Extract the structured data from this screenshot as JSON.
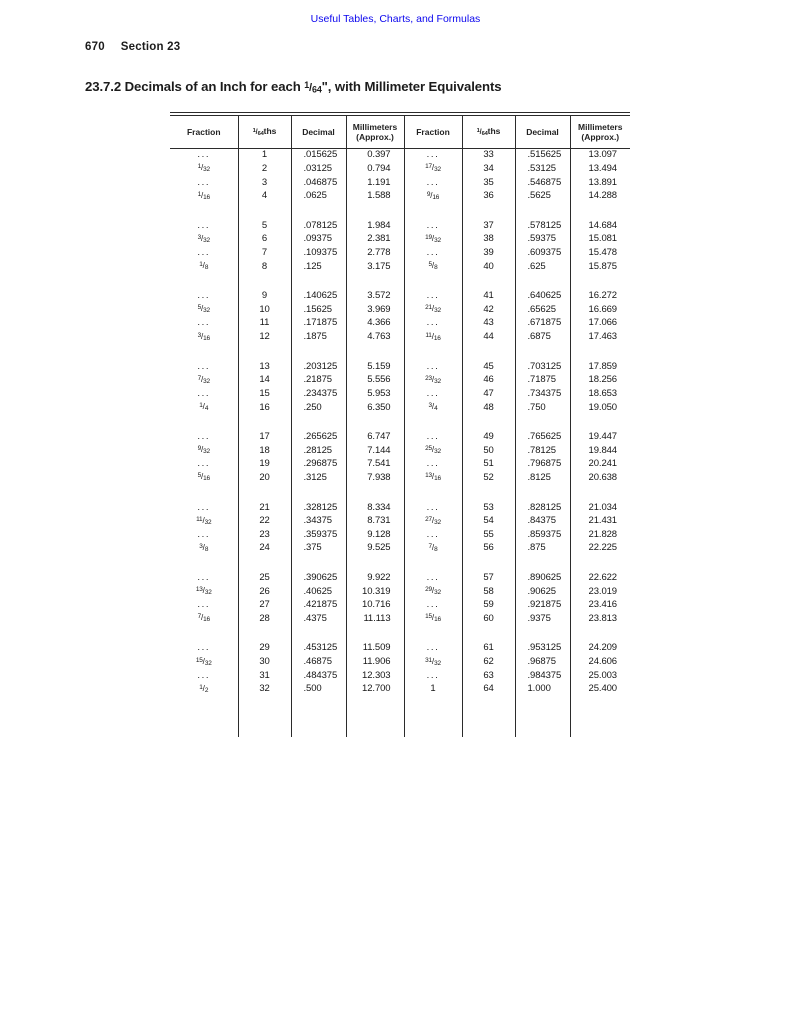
{
  "colors": {
    "link_blue": "#0b06ee",
    "rule_gray": "#2b2b2b"
  },
  "page": {
    "top_link": "Useful Tables, Charts, and Formulas",
    "page_number": "670",
    "section_label": "Section 23",
    "heading_prefix": "23.7.2 Decimals of an Inch for each ",
    "heading_fraction": "1/64",
    "heading_suffix": "\", with Millimeter Equivalents"
  },
  "table": {
    "col_headers": {
      "fraction": "Fraction",
      "sixtyfourths_frac": "1/64",
      "sixtyfourths_suffix": "ths",
      "decimal": "Decimal",
      "millimeters_line1": "Millimeters",
      "millimeters_line2": "(Approx.)"
    },
    "groups": [
      {
        "left": [
          [
            "...",
            "1",
            ".015625",
            "0.397"
          ],
          [
            "1/32",
            "2",
            ".03125",
            "0.794"
          ],
          [
            "...",
            "3",
            ".046875",
            "1.191"
          ],
          [
            "1/16",
            "4",
            ".0625",
            "1.588"
          ]
        ],
        "right": [
          [
            "...",
            "33",
            ".515625",
            "13.097"
          ],
          [
            "17/32",
            "34",
            ".53125",
            "13.494"
          ],
          [
            "...",
            "35",
            ".546875",
            "13.891"
          ],
          [
            "9/16",
            "36",
            ".5625",
            "14.288"
          ]
        ]
      },
      {
        "left": [
          [
            "...",
            "5",
            ".078125",
            "1.984"
          ],
          [
            "3/32",
            "6",
            ".09375",
            "2.381"
          ],
          [
            "...",
            "7",
            ".109375",
            "2.778"
          ],
          [
            "1/8",
            "8",
            ".125",
            "3.175"
          ]
        ],
        "right": [
          [
            "...",
            "37",
            ".578125",
            "14.684"
          ],
          [
            "19/32",
            "38",
            ".59375",
            "15.081"
          ],
          [
            "...",
            "39",
            ".609375",
            "15.478"
          ],
          [
            "5/8",
            "40",
            ".625",
            "15.875"
          ]
        ]
      },
      {
        "left": [
          [
            "...",
            "9",
            ".140625",
            "3.572"
          ],
          [
            "5/32",
            "10",
            ".15625",
            "3.969"
          ],
          [
            "...",
            "11",
            ".171875",
            "4.366"
          ],
          [
            "3/16",
            "12",
            ".1875",
            "4.763"
          ]
        ],
        "right": [
          [
            "...",
            "41",
            ".640625",
            "16.272"
          ],
          [
            "21/32",
            "42",
            ".65625",
            "16.669"
          ],
          [
            "...",
            "43",
            ".671875",
            "17.066"
          ],
          [
            "11/16",
            "44",
            ".6875",
            "17.463"
          ]
        ]
      },
      {
        "left": [
          [
            "...",
            "13",
            ".203125",
            "5.159"
          ],
          [
            "7/32",
            "14",
            ".21875",
            "5.556"
          ],
          [
            "...",
            "15",
            ".234375",
            "5.953"
          ],
          [
            "1/4",
            "16",
            ".250",
            "6.350"
          ]
        ],
        "right": [
          [
            "...",
            "45",
            ".703125",
            "17.859"
          ],
          [
            "23/32",
            "46",
            ".71875",
            "18.256"
          ],
          [
            "...",
            "47",
            ".734375",
            "18.653"
          ],
          [
            "3/4",
            "48",
            ".750",
            "19.050"
          ]
        ]
      },
      {
        "left": [
          [
            "...",
            "17",
            ".265625",
            "6.747"
          ],
          [
            "9/32",
            "18",
            ".28125",
            "7.144"
          ],
          [
            "...",
            "19",
            ".296875",
            "7.541"
          ],
          [
            "5/16",
            "20",
            ".3125",
            "7.938"
          ]
        ],
        "right": [
          [
            "...",
            "49",
            ".765625",
            "19.447"
          ],
          [
            "25/32",
            "50",
            ".78125",
            "19.844"
          ],
          [
            "...",
            "51",
            ".796875",
            "20.241"
          ],
          [
            "13/16",
            "52",
            ".8125",
            "20.638"
          ]
        ]
      },
      {
        "left": [
          [
            "...",
            "21",
            ".328125",
            "8.334"
          ],
          [
            "11/32",
            "22",
            ".34375",
            "8.731"
          ],
          [
            "...",
            "23",
            ".359375",
            "9.128"
          ],
          [
            "3/8",
            "24",
            ".375",
            "9.525"
          ]
        ],
        "right": [
          [
            "...",
            "53",
            ".828125",
            "21.034"
          ],
          [
            "27/32",
            "54",
            ".84375",
            "21.431"
          ],
          [
            "...",
            "55",
            ".859375",
            "21.828"
          ],
          [
            "7/8",
            "56",
            ".875",
            "22.225"
          ]
        ]
      },
      {
        "left": [
          [
            "...",
            "25",
            ".390625",
            "9.922"
          ],
          [
            "13/32",
            "26",
            ".40625",
            "10.319"
          ],
          [
            "...",
            "27",
            ".421875",
            "10.716"
          ],
          [
            "7/16",
            "28",
            ".4375",
            "11.113"
          ]
        ],
        "right": [
          [
            "...",
            "57",
            ".890625",
            "22.622"
          ],
          [
            "29/32",
            "58",
            ".90625",
            "23.019"
          ],
          [
            "...",
            "59",
            ".921875",
            "23.416"
          ],
          [
            "15/16",
            "60",
            ".9375",
            "23.813"
          ]
        ]
      },
      {
        "left": [
          [
            "...",
            "29",
            ".453125",
            "11.509"
          ],
          [
            "15/32",
            "30",
            ".46875",
            "11.906"
          ],
          [
            "...",
            "31",
            ".484375",
            "12.303"
          ],
          [
            "1/2",
            "32",
            ".500",
            "12.700"
          ]
        ],
        "right": [
          [
            "...",
            "61",
            ".953125",
            "24.209"
          ],
          [
            "31/32",
            "62",
            ".96875",
            "24.606"
          ],
          [
            "...",
            "63",
            ".984375",
            "25.003"
          ],
          [
            "1",
            "64",
            "1.000",
            "25.400"
          ]
        ]
      }
    ]
  }
}
